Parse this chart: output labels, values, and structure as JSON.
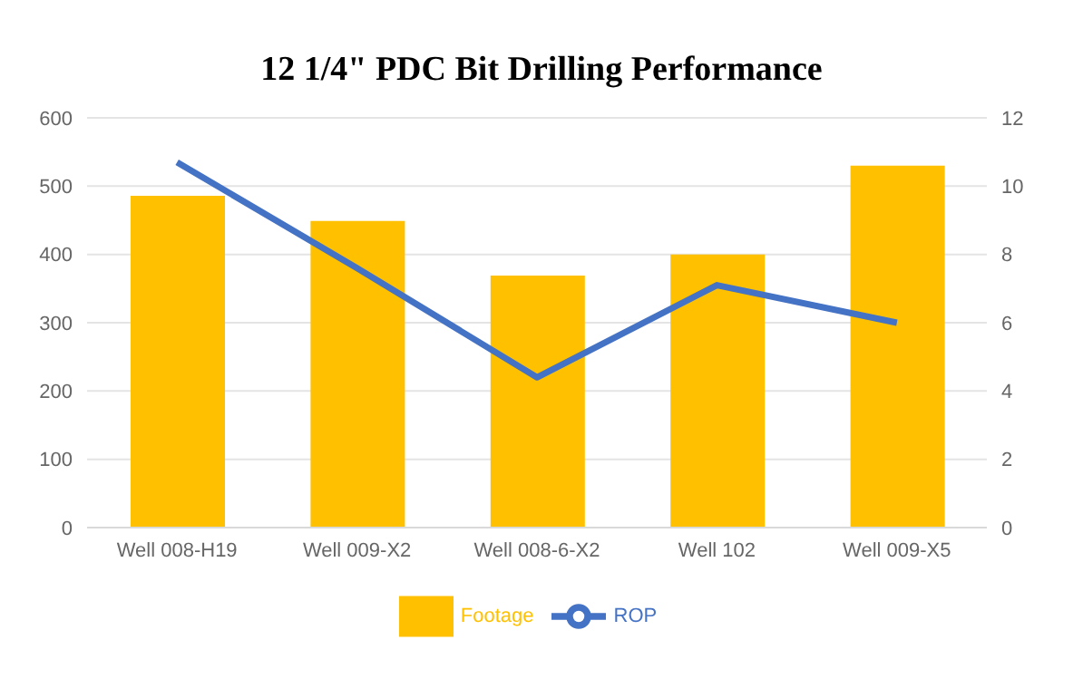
{
  "chart_data": {
    "type": "bar",
    "title": "12 1/4\" PDC Bit Drilling Performance",
    "categories": [
      "Well 008-H19",
      "Well 009-X2",
      "Well 008-6-X2",
      "Well 102",
      "Well 009-X5"
    ],
    "series": [
      {
        "name": "Footage",
        "color": "#ffc000",
        "values": [
          486,
          449,
          369,
          400,
          530
        ]
      },
      {
        "name": "ROP",
        "type": "line",
        "axis": "y2",
        "color": "#4472c4",
        "values": [
          10.7,
          7.6,
          4.4,
          7.1,
          6.0
        ]
      }
    ],
    "ylim": [
      0,
      600
    ],
    "yticks": [
      0,
      100,
      200,
      300,
      400,
      500,
      600
    ],
    "y2lim": [
      0,
      12
    ],
    "y2ticks": [
      0,
      2,
      4,
      6,
      8,
      10,
      12
    ],
    "grid": "y",
    "legend": "bottom",
    "marker": "none"
  }
}
